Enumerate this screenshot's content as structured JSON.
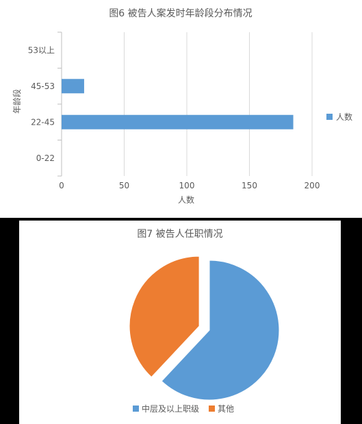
{
  "chart_data": [
    {
      "type": "bar",
      "orientation": "horizontal",
      "title": "图6 被告人案发时年龄段分布情况",
      "categories": [
        "0-22",
        "22-45",
        "45-53",
        "53以上"
      ],
      "series": [
        {
          "name": "人数",
          "values": [
            0,
            185,
            18,
            0
          ],
          "color": "#5B9BD5"
        }
      ],
      "xlabel": "人数",
      "ylabel": "年龄段",
      "xlim": [
        0,
        200
      ],
      "xticks": [
        "0",
        "50",
        "100",
        "150",
        "200"
      ],
      "grid": true,
      "legend": "right"
    },
    {
      "type": "pie",
      "title": "图7 被告人任职情况",
      "slices": [
        {
          "label": "中层及以上职级",
          "value": 62,
          "color": "#5B9BD5"
        },
        {
          "label": "其他",
          "value": 38,
          "color": "#ED7D31"
        }
      ],
      "exploded": "其他",
      "legend": "bottom"
    }
  ]
}
